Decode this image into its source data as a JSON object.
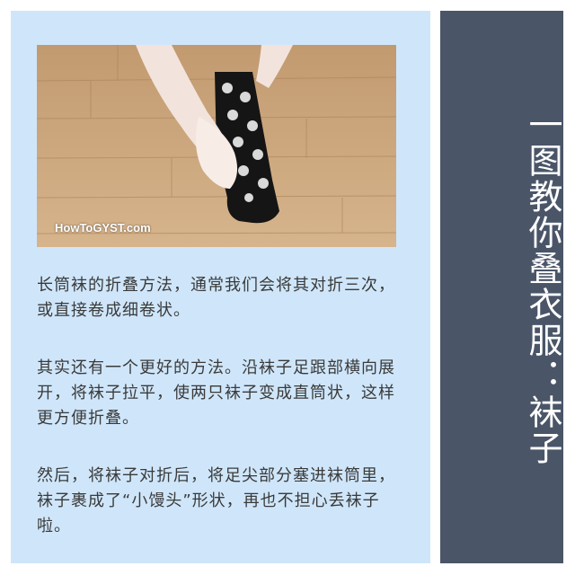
{
  "photo": {
    "watermark": "HowToGYST.com"
  },
  "paragraphs": [
    "长筒袜的折叠方法，通常我们会将其对折三次，或直接卷成细卷状。",
    "其实还有一个更好的方法。沿袜子足跟部横向展开，将袜子拉平，使两只袜子变成直筒状，这样更方便折叠。",
    "然后，将袜子对折后，将足尖部分塞进袜筒里，袜子裹成了“小馒头”形状，再也不担心丢袜子啦。"
  ],
  "title": "一图教你叠衣服：袜子",
  "colors": {
    "left_panel": "#cfe6fa",
    "right_panel": "#4a5568",
    "text": "#3a3a3a"
  }
}
